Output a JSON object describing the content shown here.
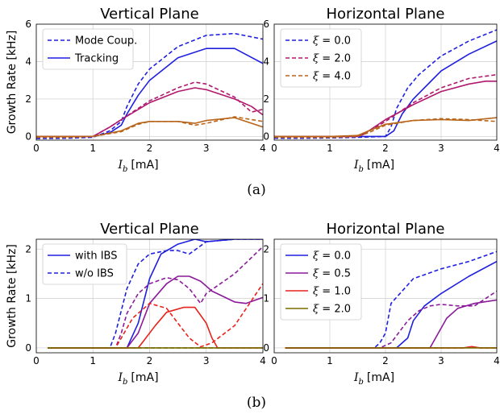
{
  "chart_data": [
    {
      "id": "a-vertical",
      "type": "line",
      "title": "Vertical Plane",
      "xlabel_sym": "I",
      "xlabel_sub": "b",
      "xlabel_unit": "[mA]",
      "ylabel": "Growth Rate [kHz]",
      "xlim": [
        0,
        4
      ],
      "ylim": [
        -0.2,
        6
      ],
      "xticks": [
        0,
        1,
        2,
        3,
        4
      ],
      "yticks": [
        0,
        2,
        4,
        6
      ],
      "grid": true,
      "legend_position": "top-left",
      "legend": [
        {
          "label": "Mode Coup.",
          "style": "dashed",
          "color": "#1f1fe0"
        },
        {
          "label": "Tracking",
          "style": "solid",
          "color": "#1f1fe0"
        }
      ],
      "series": [
        {
          "color": "#1f1fe0",
          "style": "dashed",
          "x": [
            0,
            0.5,
            1.0,
            1.3,
            1.5,
            1.6,
            1.8,
            2.0,
            2.5,
            3.0,
            3.5,
            4.0
          ],
          "y": [
            -0.12,
            -0.1,
            -0.05,
            0.3,
            0.8,
            1.6,
            2.8,
            3.6,
            4.8,
            5.4,
            5.5,
            5.2
          ]
        },
        {
          "color": "#1f1fe0",
          "style": "solid",
          "x": [
            0,
            0.5,
            1.0,
            1.3,
            1.5,
            1.6,
            1.8,
            2.0,
            2.5,
            3.0,
            3.5,
            4.0
          ],
          "y": [
            0,
            0,
            0,
            0.2,
            0.6,
            1.2,
            2.2,
            3.0,
            4.2,
            4.7,
            4.7,
            3.9
          ]
        },
        {
          "color": "#b0186e",
          "style": "dashed",
          "x": [
            0,
            0.5,
            1.0,
            1.3,
            1.5,
            2.0,
            2.5,
            2.8,
            3.0,
            3.5,
            3.8,
            4.0
          ],
          "y": [
            -0.05,
            -0.05,
            0,
            0.5,
            0.9,
            1.9,
            2.6,
            2.9,
            2.8,
            2.1,
            1.3,
            1.45
          ]
        },
        {
          "color": "#b0186e",
          "style": "solid",
          "x": [
            0,
            0.5,
            1.0,
            1.3,
            1.5,
            2.0,
            2.5,
            2.8,
            3.0,
            3.5,
            3.8,
            4.0
          ],
          "y": [
            0,
            0,
            0,
            0.5,
            0.9,
            1.8,
            2.4,
            2.6,
            2.5,
            2.0,
            1.6,
            1.15
          ]
        },
        {
          "color": "#b8641a",
          "style": "dashed",
          "x": [
            0,
            0.5,
            1.0,
            1.5,
            1.8,
            2.0,
            2.5,
            2.8,
            3.0,
            3.5,
            4.0
          ],
          "y": [
            -0.05,
            -0.05,
            0,
            0.25,
            0.65,
            0.8,
            0.8,
            0.6,
            0.7,
            1.05,
            0.8
          ]
        },
        {
          "color": "#b8641a",
          "style": "solid",
          "x": [
            0,
            0.5,
            1.0,
            1.5,
            1.8,
            2.0,
            2.5,
            2.8,
            3.0,
            3.5,
            4.0
          ],
          "y": [
            0,
            0,
            0,
            0.3,
            0.7,
            0.8,
            0.8,
            0.7,
            0.85,
            1.0,
            0.5
          ]
        }
      ]
    },
    {
      "id": "a-horizontal",
      "type": "line",
      "title": "Horizontal Plane",
      "xlabel_sym": "I",
      "xlabel_sub": "b",
      "xlabel_unit": "[mA]",
      "xlim": [
        0,
        4
      ],
      "ylim": [
        -0.2,
        6
      ],
      "xticks": [
        0,
        1,
        2,
        3,
        4
      ],
      "yticks": [
        0,
        2,
        4,
        6
      ],
      "grid": true,
      "legend_position": "top-left",
      "legend": [
        {
          "label": "0.0",
          "style": "dashed",
          "color": "#1f1fe0"
        },
        {
          "label": "2.0",
          "style": "dashed",
          "color": "#b0186e"
        },
        {
          "label": "4.0",
          "style": "dashed",
          "color": "#b8641a"
        }
      ],
      "series": [
        {
          "color": "#1f1fe0",
          "style": "dashed",
          "x": [
            0,
            0.5,
            1.0,
            1.5,
            2.0,
            2.1,
            2.2,
            2.4,
            2.6,
            3.0,
            3.5,
            4.0
          ],
          "y": [
            -0.1,
            -0.1,
            -0.08,
            -0.05,
            0,
            0.5,
            1.5,
            2.6,
            3.3,
            4.3,
            5.1,
            5.7
          ]
        },
        {
          "color": "#1f1fe0",
          "style": "solid",
          "x": [
            0,
            0.5,
            1.0,
            1.5,
            2.0,
            2.15,
            2.3,
            2.5,
            2.8,
            3.0,
            3.5,
            4.0
          ],
          "y": [
            0,
            0,
            0,
            0,
            0,
            0.3,
            1.2,
            2.0,
            2.9,
            3.5,
            4.4,
            5.1
          ]
        },
        {
          "color": "#b0186e",
          "style": "dashed",
          "x": [
            0,
            0.5,
            1.0,
            1.5,
            1.6,
            2.0,
            2.5,
            3.0,
            3.5,
            4.0
          ],
          "y": [
            -0.05,
            -0.05,
            -0.05,
            0,
            0.1,
            0.8,
            1.8,
            2.6,
            3.1,
            3.3
          ]
        },
        {
          "color": "#b0186e",
          "style": "solid",
          "x": [
            0,
            0.5,
            1.0,
            1.5,
            1.6,
            2.0,
            2.5,
            3.0,
            3.5,
            3.8,
            4.0
          ],
          "y": [
            0,
            0,
            0,
            0,
            0.1,
            0.9,
            1.7,
            2.4,
            2.8,
            2.95,
            2.95
          ]
        },
        {
          "color": "#b8641a",
          "style": "dashed",
          "x": [
            0,
            0.5,
            1.0,
            1.5,
            1.7,
            2.0,
            2.5,
            3.0,
            3.5,
            4.0
          ],
          "y": [
            -0.05,
            -0.05,
            -0.05,
            0,
            0.2,
            0.6,
            0.85,
            0.95,
            0.9,
            0.8
          ]
        },
        {
          "color": "#b8641a",
          "style": "solid",
          "x": [
            0,
            0.5,
            1.0,
            1.5,
            1.7,
            2.0,
            2.5,
            3.0,
            3.5,
            4.0
          ],
          "y": [
            0,
            0,
            0,
            0.05,
            0.3,
            0.65,
            0.85,
            0.9,
            0.85,
            1.0
          ]
        }
      ]
    },
    {
      "id": "b-vertical",
      "type": "line",
      "title": "Vertical Plane",
      "xlabel_sym": "I",
      "xlabel_sub": "b",
      "xlabel_unit": "[mA]",
      "ylabel": "Growth Rate [kHz]",
      "xlim": [
        0,
        4
      ],
      "ylim": [
        -0.1,
        2.2
      ],
      "xticks": [
        0,
        1,
        2,
        3,
        4
      ],
      "yticks": [
        0,
        1,
        2
      ],
      "grid": true,
      "legend_position": "top-left",
      "legend": [
        {
          "label": "with IBS",
          "style": "solid",
          "color": "#1f1fe0"
        },
        {
          "label": "w/o IBS",
          "style": "dashed",
          "color": "#1f1fe0"
        }
      ],
      "series": [
        {
          "color": "#1f1fe0",
          "style": "solid",
          "x": [
            0.2,
            1.5,
            1.6,
            1.8,
            2.0,
            2.2,
            2.5,
            2.8,
            3.0,
            3.5,
            4.0
          ],
          "y": [
            0,
            0,
            0,
            0.5,
            1.4,
            1.9,
            2.1,
            2.2,
            2.15,
            2.2,
            2.2
          ]
        },
        {
          "color": "#1f1fe0",
          "style": "dashed",
          "x": [
            0.2,
            1.3,
            1.4,
            1.6,
            1.8,
            2.0,
            2.3,
            2.5,
            2.7,
            3.0,
            3.5,
            4.0
          ],
          "y": [
            0,
            0,
            0.3,
            1.2,
            1.7,
            1.9,
            1.97,
            1.97,
            1.9,
            2.15,
            2.2,
            2.2
          ]
        },
        {
          "color": "#8b1a9a",
          "style": "solid",
          "x": [
            0.2,
            1.6,
            1.8,
            2.0,
            2.3,
            2.5,
            2.7,
            2.9,
            3.1,
            3.5,
            3.7,
            4.0
          ],
          "y": [
            0,
            0,
            0.3,
            0.9,
            1.3,
            1.45,
            1.45,
            1.35,
            1.15,
            0.93,
            0.9,
            1.02
          ]
        },
        {
          "color": "#8b1a9a",
          "style": "dashed",
          "x": [
            0.2,
            1.4,
            1.5,
            1.6,
            1.8,
            2.0,
            2.3,
            2.5,
            2.7,
            2.9,
            3.0,
            3.5,
            4.0
          ],
          "y": [
            0,
            0,
            0.3,
            0.7,
            1.1,
            1.3,
            1.42,
            1.38,
            1.2,
            0.9,
            1.1,
            1.5,
            2.05
          ]
        },
        {
          "color": "#e8231a",
          "style": "solid",
          "x": [
            0.2,
            1.8,
            1.9,
            2.1,
            2.3,
            2.6,
            2.8,
            3.0,
            3.1,
            3.2,
            4.0
          ],
          "y": [
            0,
            0,
            0.15,
            0.45,
            0.72,
            0.82,
            0.82,
            0.5,
            0.2,
            0,
            0
          ]
        },
        {
          "color": "#e8231a",
          "style": "dashed",
          "x": [
            0.2,
            1.4,
            1.5,
            1.7,
            2.0,
            2.3,
            2.5,
            2.7,
            2.9,
            3.1,
            3.5,
            4.0
          ],
          "y": [
            0,
            0,
            0.2,
            0.6,
            0.9,
            0.8,
            0.5,
            0.2,
            0.02,
            0.1,
            0.45,
            1.3
          ]
        },
        {
          "color": "#7a6a00",
          "style": "solid",
          "x": [
            0.2,
            4.0
          ],
          "y": [
            0,
            0
          ]
        },
        {
          "color": "#7a6a00",
          "style": "dashed",
          "x": [
            0.2,
            4.0
          ],
          "y": [
            0,
            0
          ]
        }
      ]
    },
    {
      "id": "b-horizontal",
      "type": "line",
      "title": "Horizontal Plane",
      "xlabel_sym": "I",
      "xlabel_sub": "b",
      "xlabel_unit": "[mA]",
      "xlim": [
        0,
        4
      ],
      "ylim": [
        -0.1,
        2.2
      ],
      "xticks": [
        0,
        1,
        2,
        3,
        4
      ],
      "yticks": [
        0,
        1,
        2
      ],
      "grid": true,
      "legend_position": "top-left",
      "legend": [
        {
          "label": "0.0",
          "style": "solid",
          "color": "#1f1fe0"
        },
        {
          "label": "0.5",
          "style": "solid",
          "color": "#8b1a9a"
        },
        {
          "label": "1.0",
          "style": "solid",
          "color": "#e8231a"
        },
        {
          "label": "2.0",
          "style": "solid",
          "color": "#7a6a00"
        }
      ],
      "series": [
        {
          "color": "#1f1fe0",
          "style": "dashed",
          "x": [
            0.2,
            1.8,
            1.9,
            2.0,
            2.1,
            2.5,
            3.0,
            3.5,
            4.0
          ],
          "y": [
            0,
            0,
            0.1,
            0.3,
            0.9,
            1.4,
            1.6,
            1.75,
            1.95
          ]
        },
        {
          "color": "#1f1fe0",
          "style": "solid",
          "x": [
            0.2,
            2.2,
            2.4,
            2.5,
            2.7,
            3.0,
            3.5,
            4.0
          ],
          "y": [
            0,
            0,
            0.2,
            0.55,
            0.85,
            1.1,
            1.45,
            1.75
          ]
        },
        {
          "color": "#8b1a9a",
          "style": "dashed",
          "x": [
            0.2,
            1.9,
            2.1,
            2.4,
            2.6,
            2.8,
            3.0,
            3.3,
            3.6,
            4.0
          ],
          "y": [
            0,
            0,
            0.1,
            0.55,
            0.75,
            0.85,
            0.88,
            0.85,
            0.85,
            1.15
          ]
        },
        {
          "color": "#8b1a9a",
          "style": "solid",
          "x": [
            0.2,
            2.8,
            2.9,
            3.1,
            3.3,
            3.6,
            4.0
          ],
          "y": [
            0,
            0,
            0.2,
            0.6,
            0.8,
            0.9,
            0.97
          ]
        },
        {
          "color": "#e8231a",
          "style": "dashed",
          "x": [
            0.2,
            3.4,
            3.55,
            3.7,
            4.0
          ],
          "y": [
            0,
            0,
            0.02,
            0,
            0
          ]
        },
        {
          "color": "#e8231a",
          "style": "solid",
          "x": [
            0.2,
            3.4,
            3.55,
            3.7,
            4.0
          ],
          "y": [
            0,
            0,
            0.025,
            0,
            0
          ]
        },
        {
          "color": "#7a6a00",
          "style": "solid",
          "x": [
            0.2,
            4.0
          ],
          "y": [
            0,
            0
          ]
        }
      ]
    }
  ],
  "captions": [
    "(a)",
    "(b)"
  ]
}
